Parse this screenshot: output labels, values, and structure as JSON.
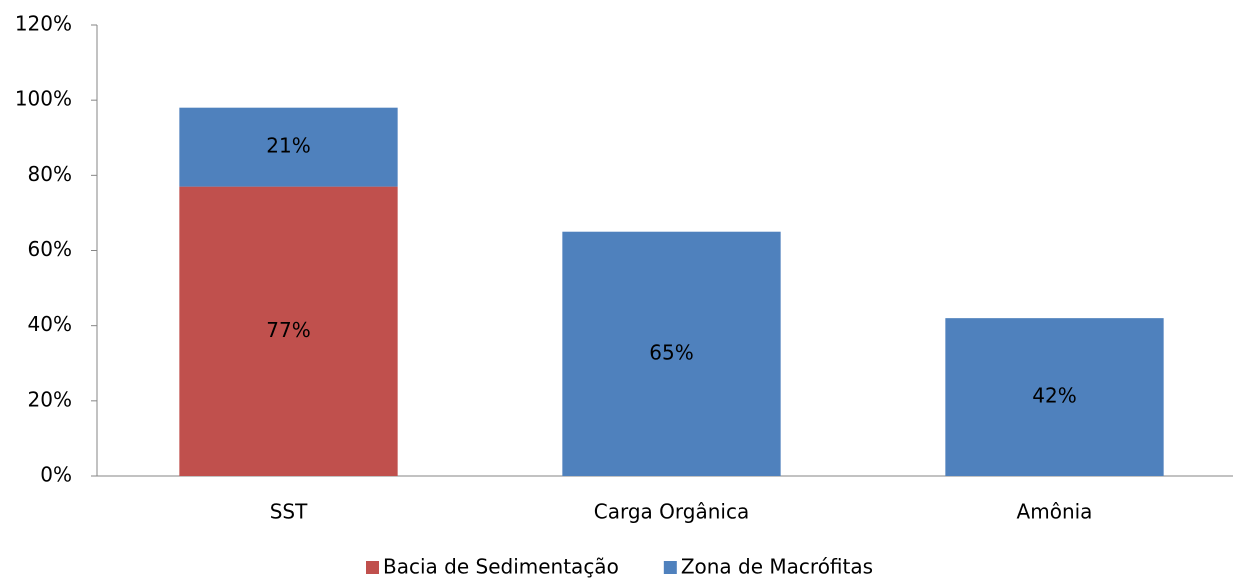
{
  "chart_data": {
    "type": "stacked_bar",
    "categories": [
      "SST",
      "Carga Orgânica",
      "Amônia"
    ],
    "series": [
      {
        "name": "Bacia de Sedimentação",
        "color": "#c0504d",
        "values": [
          77,
          null,
          null
        ],
        "value_labels": [
          "77%",
          null,
          null
        ]
      },
      {
        "name": "Zona de Macrófitas",
        "color": "#4f81bd",
        "values": [
          21,
          65,
          42
        ],
        "value_labels": [
          "21%",
          "65%",
          "42%"
        ]
      }
    ],
    "ylim": [
      0,
      120
    ],
    "yticks": [
      {
        "value": 0,
        "label": "0%"
      },
      {
        "value": 20,
        "label": "20%"
      },
      {
        "value": 40,
        "label": "40%"
      },
      {
        "value": 60,
        "label": "60%"
      },
      {
        "value": 80,
        "label": "80%"
      },
      {
        "value": 100,
        "label": "100%"
      },
      {
        "value": 120,
        "label": "120%"
      }
    ],
    "grid": false,
    "legend": "bottom"
  }
}
